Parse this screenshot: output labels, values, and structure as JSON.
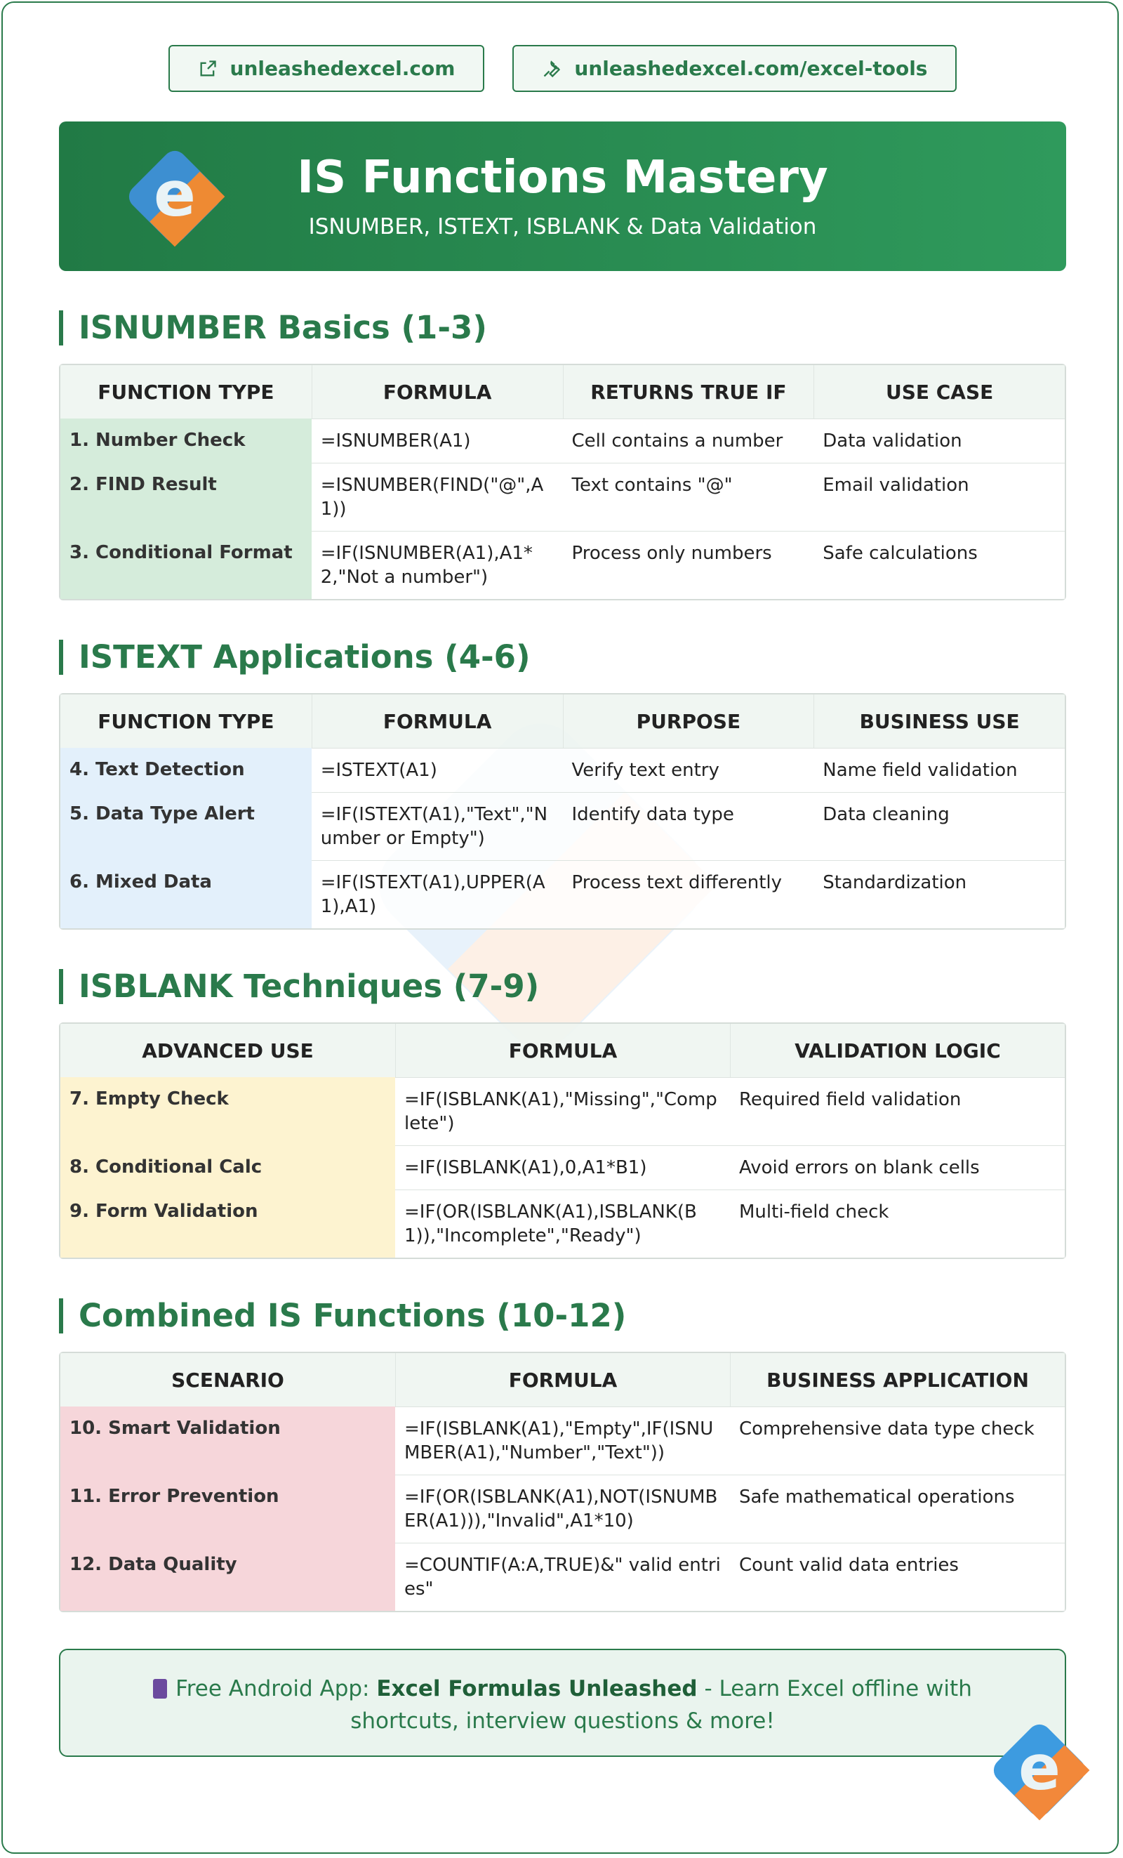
{
  "links": [
    "unleashedexcel.com",
    "unleashedexcel.com/excel-tools"
  ],
  "header": {
    "title": "IS Functions Mastery",
    "subtitle": "ISNUMBER, ISTEXT, ISBLANK & Data Validation"
  },
  "sections": [
    {
      "title": "ISNUMBER Basics (1-3)",
      "columns": [
        "FUNCTION TYPE",
        "FORMULA",
        "RETURNS TRUE IF",
        "USE CASE"
      ],
      "rows": [
        [
          "1. Number Check",
          "=ISNUMBER(A1)",
          "Cell contains a number",
          "Data validation"
        ],
        [
          "2. FIND Result",
          "=ISNUMBER(FIND(\"@\",A1))",
          "Text contains \"@\"",
          "Email validation"
        ],
        [
          "3. Conditional Format",
          "=IF(ISNUMBER(A1),A1*2,\"Not a number\")",
          "Process only numbers",
          "Safe calculations"
        ]
      ]
    },
    {
      "title": "ISTEXT Applications (4-6)",
      "columns": [
        "FUNCTION TYPE",
        "FORMULA",
        "PURPOSE",
        "BUSINESS USE"
      ],
      "rows": [
        [
          "4. Text Detection",
          "=ISTEXT(A1)",
          "Verify text entry",
          "Name field validation"
        ],
        [
          "5. Data Type Alert",
          "=IF(ISTEXT(A1),\"Text\",\"Number or Empty\")",
          "Identify data type",
          "Data cleaning"
        ],
        [
          "6. Mixed Data",
          "=IF(ISTEXT(A1),UPPER(A1),A1)",
          "Process text differently",
          "Standardization"
        ]
      ]
    },
    {
      "title": "ISBLANK Techniques (7-9)",
      "columns": [
        "ADVANCED USE",
        "FORMULA",
        "VALIDATION LOGIC"
      ],
      "rows": [
        [
          "7. Empty Check",
          "=IF(ISBLANK(A1),\"Missing\",\"Complete\")",
          "Required field validation"
        ],
        [
          "8. Conditional Calc",
          "=IF(ISBLANK(A1),0,A1*B1)",
          "Avoid errors on blank cells"
        ],
        [
          "9. Form Validation",
          "=IF(OR(ISBLANK(A1),ISBLANK(B1)),\"Incomplete\",\"Ready\")",
          "Multi-field check"
        ]
      ]
    },
    {
      "title": "Combined IS Functions (10-12)",
      "columns": [
        "SCENARIO",
        "FORMULA",
        "BUSINESS APPLICATION"
      ],
      "rows": [
        [
          "10. Smart Validation",
          "=IF(ISBLANK(A1),\"Empty\",IF(ISNUMBER(A1),\"Number\",\"Text\"))",
          "Comprehensive data type check"
        ],
        [
          "11. Error Prevention",
          "=IF(OR(ISBLANK(A1),NOT(ISNUMBER(A1))),\"Invalid\",A1*10)",
          "Safe mathematical operations"
        ],
        [
          "12. Data Quality",
          "=COUNTIF(A:A,TRUE)&\" valid entries\"",
          "Count valid data entries"
        ]
      ]
    }
  ],
  "footer": {
    "prefix": "Free Android App:",
    "app": "Excel Formulas Unleashed",
    "suffix": "- Learn Excel offline with shortcuts, interview questions & more!"
  }
}
